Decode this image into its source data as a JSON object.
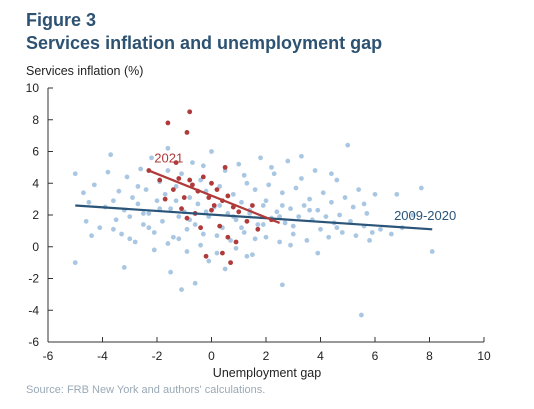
{
  "figure": {
    "label": "Figure 3",
    "title": "Services inflation and unemployment gap",
    "source": "Source: FRB New York and authors' calculations."
  },
  "colors": {
    "title": "#2d5272",
    "dots_2009_2020": "#a9c7e2",
    "dots_2021": "#b03a3a",
    "fit_2009_2020": "#2a5478",
    "fit_2021": "#b03a3a",
    "axis": "#333333"
  },
  "chart_data": {
    "type": "scatter",
    "xlabel": "Unemployment gap",
    "ylabel": "Services inflation (%)",
    "xlim": [
      -6,
      10
    ],
    "ylim": [
      -6,
      10
    ],
    "xticks": [
      -6,
      -4,
      -2,
      0,
      2,
      4,
      6,
      8,
      10
    ],
    "yticks": [
      -6,
      -4,
      -2,
      0,
      2,
      4,
      6,
      8,
      10
    ],
    "xtick_labels": [
      "-6",
      "-4",
      "-2",
      "0",
      "2",
      "4",
      "6",
      "8",
      "10"
    ],
    "ytick_labels": [
      "-6",
      "-4",
      "-2",
      "0",
      "2",
      "4",
      "6",
      "8",
      "10"
    ],
    "grid": false,
    "annotations": [
      {
        "text": "2021",
        "x": -2.1,
        "y": 5.3,
        "series": "2021"
      },
      {
        "text": "2009-2020",
        "x": 6.7,
        "y": 1.7,
        "series": "2009-2020"
      }
    ],
    "series": [
      {
        "name": "2009-2020",
        "points": [
          [
            -5.0,
            4.6
          ],
          [
            -4.7,
            3.4
          ],
          [
            -4.6,
            1.6
          ],
          [
            -4.5,
            2.8
          ],
          [
            -4.3,
            3.9
          ],
          [
            -4.1,
            1.2
          ],
          [
            -3.9,
            2.5
          ],
          [
            -3.8,
            4.7
          ],
          [
            -3.7,
            5.8
          ],
          [
            -3.6,
            2.9
          ],
          [
            -3.5,
            1.7
          ],
          [
            -3.4,
            3.5
          ],
          [
            -3.3,
            0.8
          ],
          [
            -3.2,
            2.3
          ],
          [
            -3.1,
            4.4
          ],
          [
            -3.0,
            1.9
          ],
          [
            -2.9,
            3.1
          ],
          [
            -2.8,
            0.3
          ],
          [
            -2.7,
            2.7
          ],
          [
            -2.6,
            4.9
          ],
          [
            -2.5,
            1.4
          ],
          [
            -2.4,
            3.6
          ],
          [
            -2.3,
            2.1
          ],
          [
            -2.2,
            5.6
          ],
          [
            -2.1,
            0.9
          ],
          [
            -2.0,
            2.9
          ],
          [
            -1.9,
            4.1
          ],
          [
            -1.8,
            1.6
          ],
          [
            -1.7,
            3.3
          ],
          [
            -1.6,
            6.2
          ],
          [
            -1.5,
            2.4
          ],
          [
            -1.4,
            0.6
          ],
          [
            -1.3,
            3.8
          ],
          [
            -1.2,
            1.9
          ],
          [
            -1.1,
            4.6
          ],
          [
            -1.0,
            2.2
          ],
          [
            -0.9,
            -0.3
          ],
          [
            -0.8,
            3.1
          ],
          [
            -0.7,
            5.3
          ],
          [
            -0.6,
            1.4
          ],
          [
            -0.5,
            2.7
          ],
          [
            -0.4,
            4.2
          ],
          [
            -0.3,
            0.8
          ],
          [
            -0.2,
            3.5
          ],
          [
            -0.1,
            1.9
          ],
          [
            0.0,
            6.0
          ],
          [
            0.1,
            2.5
          ],
          [
            0.2,
            -0.4
          ],
          [
            0.3,
            3.8
          ],
          [
            0.4,
            1.2
          ],
          [
            0.5,
            4.8
          ],
          [
            0.6,
            2.1
          ],
          [
            0.7,
            0.4
          ],
          [
            0.8,
            3.3
          ],
          [
            0.9,
            1.7
          ],
          [
            1.0,
            5.2
          ],
          [
            1.1,
            2.8
          ],
          [
            1.2,
            0.9
          ],
          [
            1.3,
            4.0
          ],
          [
            1.4,
            2.3
          ],
          [
            1.5,
            -0.5
          ],
          [
            1.6,
            3.6
          ],
          [
            1.7,
            1.4
          ],
          [
            1.8,
            5.6
          ],
          [
            1.9,
            2.6
          ],
          [
            2.0,
            0.6
          ],
          [
            2.1,
            3.9
          ],
          [
            2.2,
            1.8
          ],
          [
            2.3,
            4.6
          ],
          [
            2.4,
            2.2
          ],
          [
            2.5,
            0.3
          ],
          [
            2.6,
            3.4
          ],
          [
            2.7,
            1.5
          ],
          [
            2.8,
            5.4
          ],
          [
            2.9,
            2.4
          ],
          [
            3.0,
            0.8
          ],
          [
            3.1,
            3.7
          ],
          [
            3.2,
            1.9
          ],
          [
            3.3,
            4.3
          ],
          [
            3.4,
            2.6
          ],
          [
            3.5,
            0.4
          ],
          [
            3.6,
            3.0
          ],
          [
            3.7,
            1.7
          ],
          [
            3.8,
            4.8
          ],
          [
            3.9,
            2.3
          ],
          [
            4.0,
            1.1
          ],
          [
            4.1,
            3.4
          ],
          [
            4.2,
            1.9
          ],
          [
            4.3,
            0.6
          ],
          [
            4.4,
            2.8
          ],
          [
            4.5,
            1.5
          ],
          [
            4.6,
            4.2
          ],
          [
            4.7,
            2.0
          ],
          [
            4.8,
            0.9
          ],
          [
            4.9,
            3.1
          ],
          [
            5.0,
            6.4
          ],
          [
            5.1,
            1.6
          ],
          [
            5.2,
            2.5
          ],
          [
            5.3,
            0.7
          ],
          [
            5.4,
            3.6
          ],
          [
            5.5,
            -4.3
          ],
          [
            5.6,
            1.3
          ],
          [
            5.7,
            2.1
          ],
          [
            5.8,
            0.4
          ],
          [
            5.9,
            0.9
          ],
          [
            6.0,
            3.3
          ],
          [
            6.2,
            1.1
          ],
          [
            6.6,
            0.8
          ],
          [
            6.8,
            3.3
          ],
          [
            7.0,
            1.2
          ],
          [
            7.4,
            2.0
          ],
          [
            7.7,
            3.7
          ],
          [
            8.1,
            -0.3
          ],
          [
            -5.0,
            -1.0
          ],
          [
            -3.2,
            -1.3
          ],
          [
            -1.5,
            -1.6
          ],
          [
            -0.6,
            -2.3
          ],
          [
            0.5,
            -1.4
          ],
          [
            2.6,
            -2.4
          ],
          [
            -1.1,
            -2.7
          ],
          [
            -2.5,
            2.1
          ],
          [
            -1.9,
            2.4
          ],
          [
            -1.3,
            2.9
          ],
          [
            -0.8,
            1.7
          ],
          [
            -0.2,
            2.2
          ],
          [
            0.3,
            2.6
          ],
          [
            0.8,
            1.9
          ],
          [
            1.4,
            2.1
          ],
          [
            1.9,
            1.4
          ],
          [
            2.5,
            1.9
          ],
          [
            3.0,
            1.3
          ],
          [
            -3.6,
            1.1
          ],
          [
            -3.0,
            0.5
          ],
          [
            -2.1,
            -0.2
          ],
          [
            -1.6,
            0.2
          ],
          [
            -0.4,
            0.1
          ],
          [
            0.9,
            -0.1
          ],
          [
            1.6,
            0.5
          ],
          [
            2.9,
            0.1
          ],
          [
            3.9,
            -0.4
          ],
          [
            -4.4,
            0.7
          ],
          [
            -2.7,
            3.8
          ],
          [
            -1.6,
            4.8
          ],
          [
            -0.3,
            5.1
          ],
          [
            1.2,
            4.5
          ],
          [
            2.2,
            5.0
          ],
          [
            3.3,
            5.7
          ],
          [
            4.4,
            4.6
          ],
          [
            -0.9,
            1.1
          ],
          [
            0.2,
            0.7
          ],
          [
            1.1,
            1.2
          ],
          [
            2.0,
            2.9
          ],
          [
            2.6,
            2.6
          ],
          [
            3.6,
            2.3
          ],
          [
            4.6,
            1.2
          ],
          [
            5.6,
            2.7
          ],
          [
            -2.3,
            1.2
          ],
          [
            -1.2,
            0.5
          ],
          [
            -0.1,
            -0.9
          ],
          [
            1.3,
            -0.6
          ]
        ]
      },
      {
        "name": "2021",
        "points": [
          [
            -1.6,
            7.8
          ],
          [
            -0.8,
            8.5
          ],
          [
            -0.9,
            7.2
          ],
          [
            -1.9,
            4.2
          ],
          [
            -1.4,
            3.6
          ],
          [
            -1.2,
            4.3
          ],
          [
            -1.0,
            3.1
          ],
          [
            -0.7,
            3.9
          ],
          [
            -0.5,
            3.5
          ],
          [
            -0.3,
            4.4
          ],
          [
            -0.1,
            3.1
          ],
          [
            0.1,
            2.6
          ],
          [
            0.2,
            3.6
          ],
          [
            0.4,
            2.9
          ],
          [
            0.6,
            3.2
          ],
          [
            0.8,
            2.5
          ],
          [
            1.0,
            2.2
          ],
          [
            -0.9,
            1.8
          ],
          [
            -0.4,
            1.2
          ],
          [
            0.3,
            1.3
          ],
          [
            0.6,
            0.6
          ],
          [
            0.9,
            0.3
          ],
          [
            1.3,
            1.6
          ],
          [
            1.7,
            1.1
          ],
          [
            0.4,
            -0.4
          ],
          [
            0.7,
            -1.0
          ],
          [
            -0.2,
            -0.6
          ],
          [
            -1.1,
            2.4
          ],
          [
            -0.6,
            2.1
          ],
          [
            -1.3,
            5.3
          ],
          [
            0.5,
            5.0
          ],
          [
            -2.3,
            4.8
          ],
          [
            -1.7,
            3.0
          ],
          [
            2.2,
            1.7
          ],
          [
            1.5,
            2.6
          ],
          [
            0.0,
            2.3
          ],
          [
            -0.8,
            4.2
          ],
          [
            0.0,
            4.0
          ]
        ]
      }
    ],
    "fits": [
      {
        "series": "2009-2020",
        "from": [
          -5.0,
          2.6
        ],
        "to": [
          8.1,
          1.1
        ]
      },
      {
        "series": "2021",
        "from": [
          -2.3,
          4.8
        ],
        "to": [
          2.5,
          1.5
        ]
      }
    ]
  }
}
